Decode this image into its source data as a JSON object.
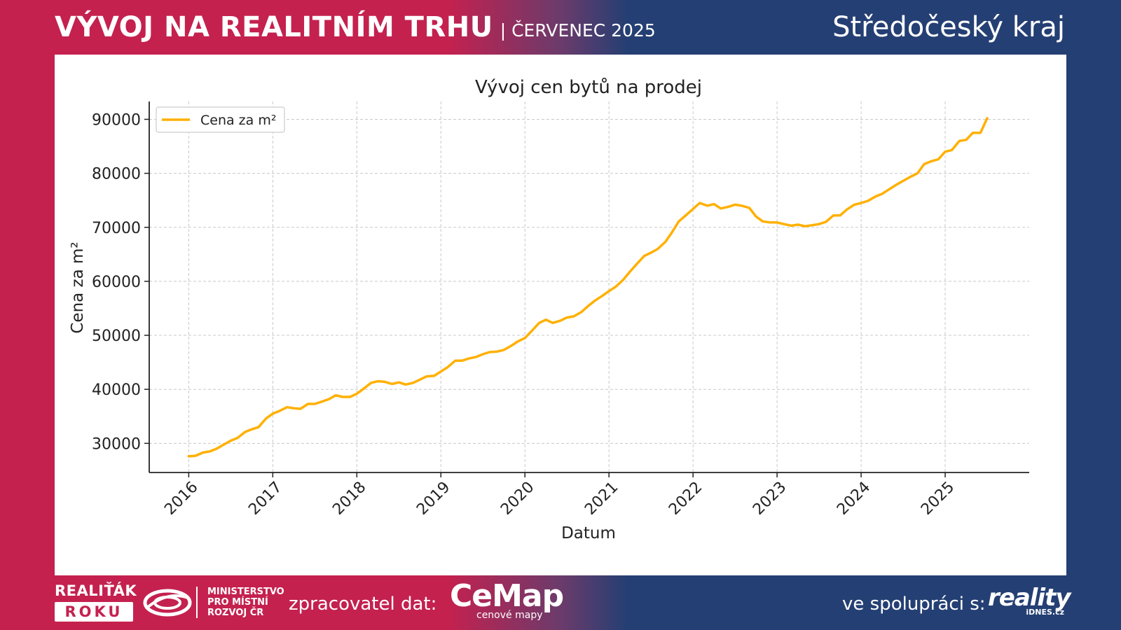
{
  "header": {
    "title": "VÝVOJ NA REALITNÍM TRHU",
    "subtitle": "| ČERVENEC 2025",
    "region": "Středočeský kraj"
  },
  "colors": {
    "left_brand": "#c4214f",
    "right_brand": "#243f73",
    "line": "#ffb000"
  },
  "chart_data": {
    "type": "line",
    "title": "Vývoj cen bytů na prodej",
    "xlabel": "Datum",
    "ylabel": "Cena za m²",
    "legend": {
      "placement": "top-left",
      "entries": [
        "Cena za m²"
      ]
    },
    "grid": true,
    "xlim": [
      2015.53,
      2026.0
    ],
    "ylim": [
      24600,
      93300
    ],
    "x_ticks": [
      "2016",
      "2017",
      "2018",
      "2019",
      "2020",
      "2021",
      "2022",
      "2023",
      "2024",
      "2025"
    ],
    "y_ticks": [
      "30000",
      "40000",
      "50000",
      "60000",
      "70000",
      "80000",
      "90000"
    ],
    "series": [
      {
        "name": "Cena za m²",
        "x": [
          2016.0,
          2016.08,
          2016.17,
          2016.25,
          2016.33,
          2016.42,
          2016.5,
          2016.58,
          2016.67,
          2016.75,
          2016.83,
          2016.92,
          2017.0,
          2017.08,
          2017.17,
          2017.25,
          2017.33,
          2017.42,
          2017.5,
          2017.58,
          2017.67,
          2017.75,
          2017.83,
          2017.92,
          2018.0,
          2018.08,
          2018.17,
          2018.25,
          2018.33,
          2018.42,
          2018.5,
          2018.58,
          2018.67,
          2018.75,
          2018.83,
          2018.92,
          2019.0,
          2019.08,
          2019.17,
          2019.25,
          2019.33,
          2019.42,
          2019.5,
          2019.58,
          2019.67,
          2019.75,
          2019.83,
          2019.92,
          2020.0,
          2020.08,
          2020.17,
          2020.25,
          2020.33,
          2020.42,
          2020.5,
          2020.58,
          2020.67,
          2020.75,
          2020.83,
          2020.92,
          2021.0,
          2021.08,
          2021.17,
          2021.25,
          2021.33,
          2021.42,
          2021.5,
          2021.58,
          2021.67,
          2021.75,
          2021.83,
          2021.92,
          2022.0,
          2022.08,
          2022.17,
          2022.25,
          2022.33,
          2022.42,
          2022.5,
          2022.58,
          2022.67,
          2022.75,
          2022.83,
          2022.92,
          2023.0,
          2023.08,
          2023.17,
          2023.25,
          2023.33,
          2023.42,
          2023.5,
          2023.58,
          2023.67,
          2023.75,
          2023.83,
          2023.92,
          2024.0,
          2024.08,
          2024.17,
          2024.25,
          2024.33,
          2024.42,
          2024.5,
          2024.58,
          2024.67,
          2024.75,
          2024.83,
          2024.92,
          2025.0,
          2025.08,
          2025.17,
          2025.25,
          2025.33,
          2025.42,
          2025.5
        ],
        "values": [
          27600,
          27700,
          28300,
          28500,
          29000,
          29800,
          30500,
          31000,
          32100,
          32600,
          33000,
          34600,
          35500,
          36000,
          36700,
          36500,
          36400,
          37300,
          37300,
          37700,
          38200,
          38900,
          38600,
          38600,
          39200,
          40100,
          41200,
          41500,
          41400,
          41000,
          41300,
          40900,
          41200,
          41800,
          42400,
          42500,
          43300,
          44100,
          45300,
          45300,
          45700,
          46000,
          46500,
          46900,
          47000,
          47300,
          48000,
          48900,
          49500,
          50800,
          52300,
          52900,
          52300,
          52700,
          53300,
          53500,
          54300,
          55400,
          56400,
          57300,
          58200,
          59000,
          60300,
          61800,
          63200,
          64700,
          65300,
          66000,
          67300,
          69100,
          71100,
          72300,
          73400,
          74500,
          74000,
          74300,
          73500,
          73800,
          74200,
          74000,
          73600,
          72000,
          71100,
          70900,
          70900,
          70600,
          70300,
          70500,
          70200,
          70400,
          70600,
          71000,
          72200,
          72200,
          73300,
          74200,
          74500,
          74900,
          75700,
          76200,
          77000,
          77900,
          78600,
          79300,
          80000,
          81700,
          82200,
          82600,
          84000,
          84300,
          86000,
          86200,
          87500,
          87500,
          90200
        ]
      }
    ]
  },
  "footer": {
    "realitak_top": "REALIŤÁK",
    "realitak_bottom": "ROKU",
    "ministry_lines": [
      "MINISTERSTVO",
      "PRO MÍSTNÍ",
      "ROZVOJ ČR"
    ],
    "processor_label": "zpracovatel dat:",
    "cemap_name": "CeMap",
    "cemap_tagline": "cenové mapy",
    "partner_label": "ve spolupráci s:",
    "partner_name": "reality",
    "partner_domain": "iDNES.cz"
  }
}
